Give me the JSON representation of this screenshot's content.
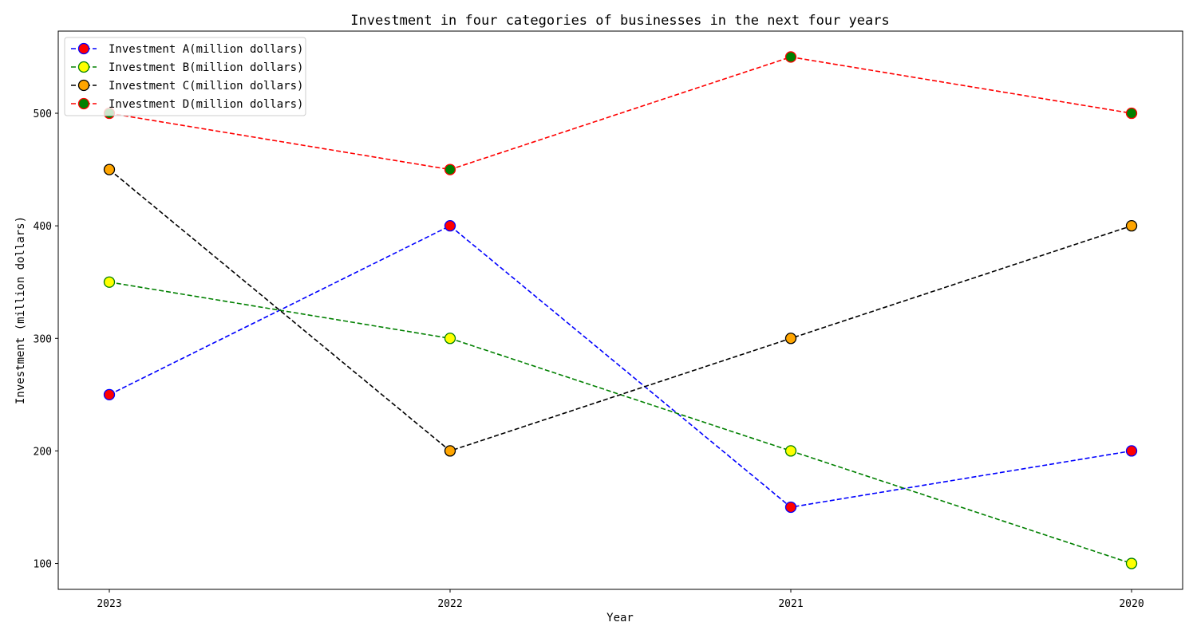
{
  "chart_data": {
    "type": "line",
    "title": "Investment in four categories of businesses in the next four years",
    "xlabel": "Year",
    "ylabel": "Investment (million dollars)",
    "categories": [
      "2023",
      "2022",
      "2021",
      "2020"
    ],
    "ylim": [
      77,
      573
    ],
    "yticks": [
      100,
      200,
      300,
      400,
      500
    ],
    "grid": false,
    "legend_position": "top-left",
    "series": [
      {
        "name": "Investment A(million dollars)",
        "values": [
          250,
          400,
          150,
          200
        ],
        "line_color": "#0000ff",
        "marker_face": "#ff0000",
        "marker_edge": "#0000ff",
        "line_style": "dashed"
      },
      {
        "name": "Investment B(million dollars)",
        "values": [
          350,
          300,
          200,
          100
        ],
        "line_color": "#008000",
        "marker_face": "#ffff00",
        "marker_edge": "#008000",
        "line_style": "dashed"
      },
      {
        "name": "Investment C(million dollars)",
        "values": [
          450,
          200,
          300,
          400
        ],
        "line_color": "#000000",
        "marker_face": "#ffa500",
        "marker_edge": "#000000",
        "line_style": "dashed"
      },
      {
        "name": "Investment D(million dollars)",
        "values": [
          500,
          450,
          550,
          500
        ],
        "line_color": "#ff0000",
        "marker_face": "#008000",
        "marker_edge": "#ff0000",
        "line_style": "dashed"
      }
    ]
  }
}
